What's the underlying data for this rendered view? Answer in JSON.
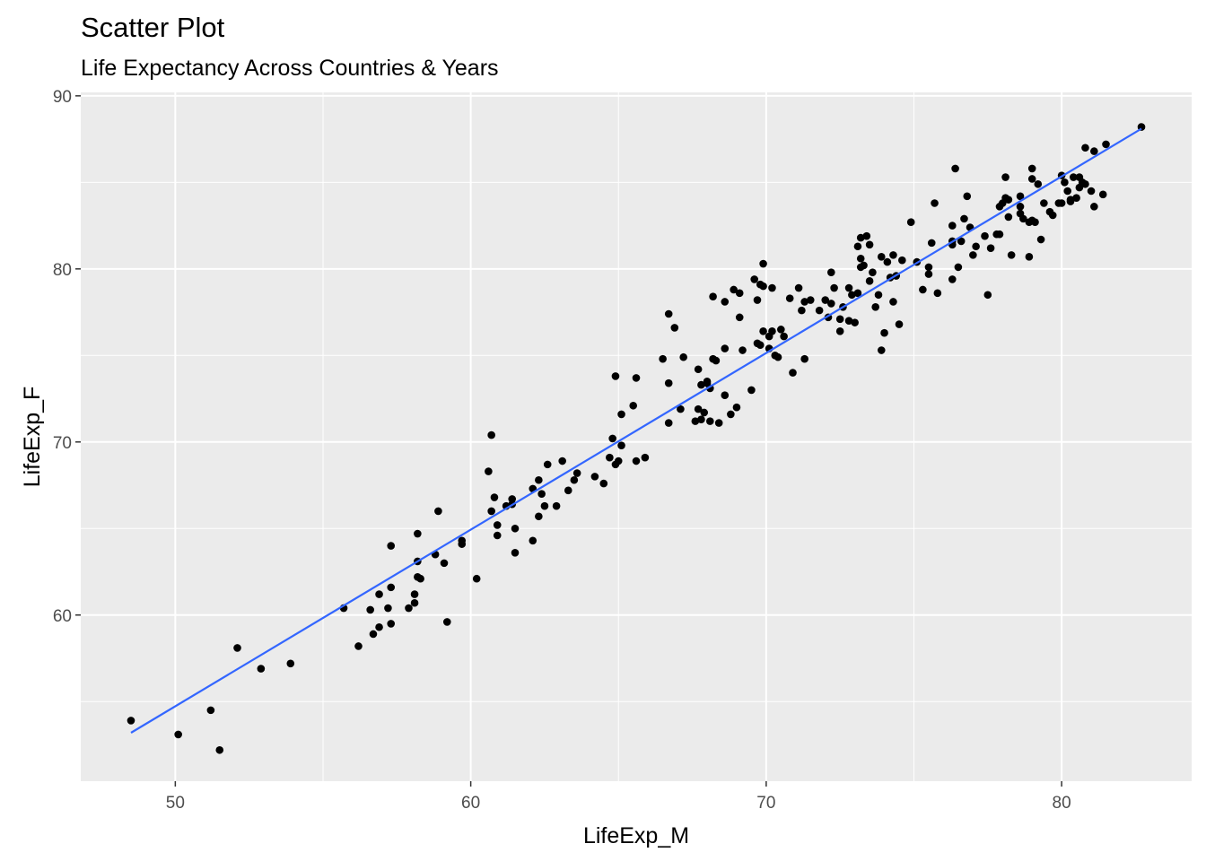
{
  "chart_data": {
    "type": "scatter",
    "title": "Scatter Plot",
    "subtitle": "Life Expectancy Across Countries & Years",
    "xlabel": "LifeExp_M",
    "ylabel": "LifeExp_F",
    "xlim": [
      46.8,
      84.4
    ],
    "ylim": [
      50.4,
      90.2
    ],
    "x_ticks": [
      50,
      60,
      70,
      80
    ],
    "y_ticks": [
      60,
      70,
      80,
      90
    ],
    "grid": true,
    "panel_color": "#ebebeb",
    "point_color": "#000000",
    "line_color": "#3366ff",
    "trend_line": {
      "x": [
        48.5,
        82.7
      ],
      "y": [
        53.2,
        88.1
      ]
    },
    "points": [
      [
        48.5,
        53.9
      ],
      [
        50.1,
        53.1
      ],
      [
        51.2,
        54.5
      ],
      [
        51.5,
        52.2
      ],
      [
        52.1,
        58.1
      ],
      [
        52.9,
        56.9
      ],
      [
        53.9,
        57.2
      ],
      [
        55.7,
        60.4
      ],
      [
        56.2,
        58.2
      ],
      [
        56.6,
        60.3
      ],
      [
        56.7,
        58.9
      ],
      [
        56.9,
        59.3
      ],
      [
        56.9,
        61.2
      ],
      [
        57.2,
        60.4
      ],
      [
        57.3,
        61.6
      ],
      [
        57.3,
        64.0
      ],
      [
        57.3,
        59.5
      ],
      [
        57.9,
        60.4
      ],
      [
        58.1,
        60.7
      ],
      [
        58.1,
        61.2
      ],
      [
        58.2,
        63.1
      ],
      [
        58.2,
        64.7
      ],
      [
        58.2,
        62.2
      ],
      [
        58.3,
        62.1
      ],
      [
        58.8,
        63.5
      ],
      [
        58.9,
        66.0
      ],
      [
        59.1,
        63.0
      ],
      [
        59.2,
        59.6
      ],
      [
        59.7,
        64.3
      ],
      [
        59.7,
        64.1
      ],
      [
        60.2,
        62.1
      ],
      [
        60.6,
        68.3
      ],
      [
        60.7,
        66.0
      ],
      [
        60.7,
        70.4
      ],
      [
        60.8,
        66.8
      ],
      [
        60.9,
        65.2
      ],
      [
        60.9,
        64.6
      ],
      [
        61.2,
        66.3
      ],
      [
        61.4,
        66.4
      ],
      [
        61.5,
        65.0
      ],
      [
        61.5,
        63.6
      ],
      [
        61.4,
        66.7
      ],
      [
        62.1,
        64.3
      ],
      [
        62.1,
        67.3
      ],
      [
        62.3,
        67.8
      ],
      [
        62.3,
        65.7
      ],
      [
        62.4,
        67.0
      ],
      [
        62.5,
        66.3
      ],
      [
        62.6,
        68.7
      ],
      [
        62.9,
        66.3
      ],
      [
        63.1,
        68.9
      ],
      [
        63.3,
        67.2
      ],
      [
        63.5,
        67.8
      ],
      [
        63.6,
        68.2
      ],
      [
        64.2,
        68.0
      ],
      [
        64.5,
        67.6
      ],
      [
        64.7,
        69.1
      ],
      [
        64.8,
        70.2
      ],
      [
        64.9,
        68.7
      ],
      [
        65.0,
        68.9
      ],
      [
        65.1,
        69.8
      ],
      [
        65.1,
        71.6
      ],
      [
        64.9,
        73.8
      ],
      [
        65.5,
        72.1
      ],
      [
        65.6,
        68.9
      ],
      [
        65.6,
        73.7
      ],
      [
        65.9,
        69.1
      ],
      [
        66.5,
        74.8
      ],
      [
        66.7,
        73.4
      ],
      [
        66.7,
        71.1
      ],
      [
        66.7,
        77.4
      ],
      [
        66.9,
        76.6
      ],
      [
        67.1,
        71.9
      ],
      [
        67.2,
        74.9
      ],
      [
        67.6,
        71.2
      ],
      [
        67.7,
        74.2
      ],
      [
        67.7,
        71.9
      ],
      [
        67.8,
        71.3
      ],
      [
        67.8,
        73.3
      ],
      [
        67.9,
        71.7
      ],
      [
        68.0,
        73.5
      ],
      [
        68.0,
        73.4
      ],
      [
        68.1,
        73.1
      ],
      [
        68.1,
        71.2
      ],
      [
        68.2,
        74.8
      ],
      [
        68.3,
        74.7
      ],
      [
        68.2,
        78.4
      ],
      [
        68.4,
        71.1
      ],
      [
        68.6,
        78.1
      ],
      [
        68.6,
        72.7
      ],
      [
        68.6,
        75.4
      ],
      [
        68.8,
        71.6
      ],
      [
        69.0,
        72.0
      ],
      [
        68.9,
        78.8
      ],
      [
        69.1,
        78.6
      ],
      [
        69.1,
        77.2
      ],
      [
        69.2,
        75.3
      ],
      [
        69.5,
        73.0
      ],
      [
        69.7,
        75.7
      ],
      [
        69.6,
        79.4
      ],
      [
        69.7,
        78.2
      ],
      [
        69.8,
        75.6
      ],
      [
        69.9,
        80.3
      ],
      [
        69.9,
        76.4
      ],
      [
        69.8,
        79.1
      ],
      [
        69.9,
        79.0
      ],
      [
        70.1,
        76.1
      ],
      [
        70.1,
        75.4
      ],
      [
        70.2,
        76.4
      ],
      [
        70.2,
        78.9
      ],
      [
        70.3,
        75.0
      ],
      [
        70.4,
        74.9
      ],
      [
        70.5,
        76.5
      ],
      [
        70.6,
        76.1
      ],
      [
        70.8,
        78.3
      ],
      [
        70.9,
        74.0
      ],
      [
        71.1,
        78.9
      ],
      [
        71.2,
        77.6
      ],
      [
        71.3,
        74.8
      ],
      [
        71.3,
        78.1
      ],
      [
        71.5,
        78.2
      ],
      [
        71.8,
        77.6
      ],
      [
        72.0,
        78.2
      ],
      [
        72.1,
        77.2
      ],
      [
        72.2,
        78.0
      ],
      [
        72.2,
        79.8
      ],
      [
        72.3,
        78.9
      ],
      [
        72.5,
        77.1
      ],
      [
        72.5,
        76.4
      ],
      [
        72.6,
        77.8
      ],
      [
        72.8,
        78.9
      ],
      [
        72.8,
        77.0
      ],
      [
        72.9,
        78.5
      ],
      [
        73.0,
        76.9
      ],
      [
        73.1,
        78.6
      ],
      [
        73.1,
        81.3
      ],
      [
        73.2,
        81.8
      ],
      [
        73.2,
        80.6
      ],
      [
        73.2,
        80.1
      ],
      [
        73.3,
        80.2
      ],
      [
        73.4,
        81.9
      ],
      [
        73.5,
        81.4
      ],
      [
        73.5,
        79.3
      ],
      [
        73.6,
        79.8
      ],
      [
        73.7,
        77.8
      ],
      [
        73.8,
        78.5
      ],
      [
        73.9,
        80.7
      ],
      [
        73.9,
        75.3
      ],
      [
        74.0,
        76.3
      ],
      [
        74.1,
        80.4
      ],
      [
        74.2,
        79.5
      ],
      [
        74.3,
        78.1
      ],
      [
        74.4,
        79.6
      ],
      [
        74.3,
        80.8
      ],
      [
        74.5,
        76.8
      ],
      [
        74.6,
        80.5
      ],
      [
        74.9,
        82.7
      ],
      [
        75.1,
        80.4
      ],
      [
        75.3,
        78.8
      ],
      [
        75.5,
        80.1
      ],
      [
        75.5,
        79.7
      ],
      [
        75.6,
        81.5
      ],
      [
        75.7,
        83.8
      ],
      [
        75.8,
        78.6
      ],
      [
        76.3,
        81.4
      ],
      [
        76.3,
        79.4
      ],
      [
        76.4,
        85.8
      ],
      [
        76.3,
        81.6
      ],
      [
        76.3,
        82.5
      ],
      [
        76.5,
        80.1
      ],
      [
        76.6,
        81.6
      ],
      [
        76.7,
        82.9
      ],
      [
        76.8,
        84.2
      ],
      [
        76.9,
        82.4
      ],
      [
        77.0,
        80.8
      ],
      [
        77.1,
        81.3
      ],
      [
        77.4,
        81.9
      ],
      [
        77.5,
        78.5
      ],
      [
        77.6,
        81.2
      ],
      [
        77.8,
        82.0
      ],
      [
        77.9,
        82.0
      ],
      [
        77.9,
        83.6
      ],
      [
        78.0,
        83.8
      ],
      [
        78.1,
        84.1
      ],
      [
        78.1,
        85.3
      ],
      [
        78.2,
        84.0
      ],
      [
        78.2,
        83.0
      ],
      [
        78.3,
        80.8
      ],
      [
        78.6,
        83.2
      ],
      [
        78.6,
        83.6
      ],
      [
        78.7,
        82.9
      ],
      [
        78.6,
        84.2
      ],
      [
        78.9,
        80.7
      ],
      [
        78.9,
        82.7
      ],
      [
        79.0,
        85.8
      ],
      [
        79.0,
        85.2
      ],
      [
        79.0,
        82.8
      ],
      [
        79.1,
        82.7
      ],
      [
        79.2,
        84.9
      ],
      [
        79.3,
        81.7
      ],
      [
        79.4,
        83.8
      ],
      [
        79.6,
        83.3
      ],
      [
        79.7,
        83.1
      ],
      [
        79.9,
        83.8
      ],
      [
        80.0,
        85.4
      ],
      [
        80.0,
        83.8
      ],
      [
        80.1,
        85.0
      ],
      [
        80.2,
        84.5
      ],
      [
        80.3,
        84.0
      ],
      [
        80.3,
        83.9
      ],
      [
        80.4,
        85.3
      ],
      [
        80.5,
        84.1
      ],
      [
        80.6,
        84.7
      ],
      [
        80.6,
        85.3
      ],
      [
        80.7,
        85.0
      ],
      [
        80.8,
        87.0
      ],
      [
        80.8,
        84.9
      ],
      [
        81.0,
        84.5
      ],
      [
        81.1,
        86.8
      ],
      [
        81.1,
        83.6
      ],
      [
        81.4,
        84.3
      ],
      [
        81.5,
        87.2
      ],
      [
        82.7,
        88.2
      ]
    ]
  }
}
